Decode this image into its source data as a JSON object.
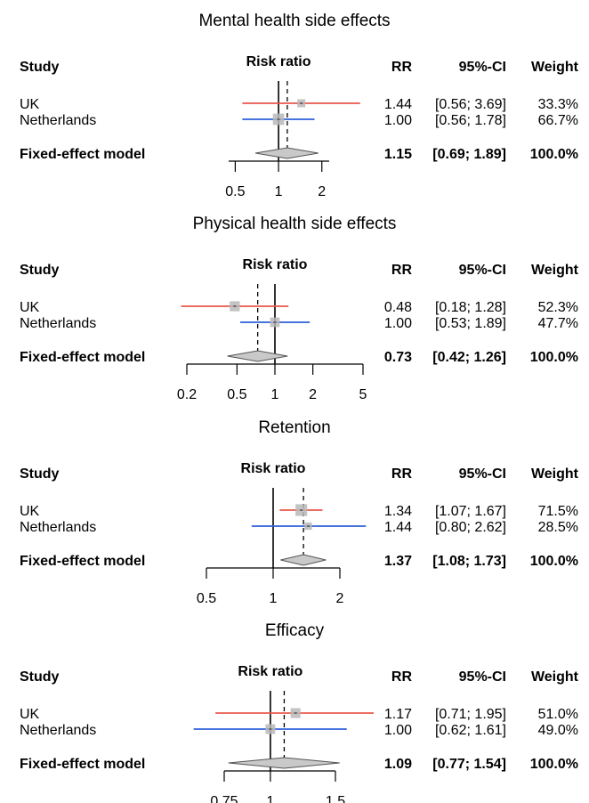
{
  "chart_data": [
    {
      "type": "forest",
      "title": "Mental health side effects",
      "headers": {
        "study": "Study",
        "effect": "Risk ratio",
        "rr": "RR",
        "ci": "95%-CI",
        "weight": "Weight"
      },
      "scale": "log",
      "xlim": [
        0.45,
        2.25
      ],
      "ticks": [
        {
          "v": 0.5,
          "label": "0.5"
        },
        {
          "v": 1,
          "label": "1"
        },
        {
          "v": 2,
          "label": "2"
        }
      ],
      "pooled_line": 1.15,
      "studies": [
        {
          "name": "UK",
          "rr": 1.44,
          "lo": 0.56,
          "hi": 3.69,
          "rr_text": "1.44",
          "ci_text": "[0.56; 3.69]",
          "weight_text": "33.3%",
          "weight": 33.3,
          "color": "#e8574a"
        },
        {
          "name": "Netherlands",
          "rr": 1.0,
          "lo": 0.56,
          "hi": 1.78,
          "rr_text": "1.00",
          "ci_text": "[0.56; 1.78]",
          "weight_text": "66.7%",
          "weight": 66.7,
          "color": "#2b5fd9"
        }
      ],
      "pooled": {
        "name": "Fixed-effect model",
        "rr": 1.15,
        "lo": 0.69,
        "hi": 1.89,
        "rr_text": "1.15",
        "ci_text": "[0.69; 1.89]",
        "weight_text": "100.0%"
      }
    },
    {
      "type": "forest",
      "title": "Physical health side effects",
      "headers": {
        "study": "Study",
        "effect": "Risk ratio",
        "rr": "RR",
        "ci": "95%-CI",
        "weight": "Weight"
      },
      "scale": "log",
      "xlim": [
        0.2,
        5
      ],
      "ticks": [
        {
          "v": 0.2,
          "label": "0.2"
        },
        {
          "v": 0.5,
          "label": "0.5"
        },
        {
          "v": 1,
          "label": "1"
        },
        {
          "v": 2,
          "label": "2"
        },
        {
          "v": 5,
          "label": "5"
        }
      ],
      "pooled_line": 0.73,
      "studies": [
        {
          "name": "UK",
          "rr": 0.48,
          "lo": 0.18,
          "hi": 1.28,
          "rr_text": "0.48",
          "ci_text": "[0.18; 1.28]",
          "weight_text": "52.3%",
          "weight": 52.3,
          "color": "#e8574a"
        },
        {
          "name": "Netherlands",
          "rr": 1.0,
          "lo": 0.53,
          "hi": 1.89,
          "rr_text": "1.00",
          "ci_text": "[0.53; 1.89]",
          "weight_text": "47.7%",
          "weight": 47.7,
          "color": "#2b5fd9"
        }
      ],
      "pooled": {
        "name": "Fixed-effect model",
        "rr": 0.73,
        "lo": 0.42,
        "hi": 1.26,
        "rr_text": "0.73",
        "ci_text": "[0.42; 1.26]",
        "weight_text": "100.0%"
      }
    },
    {
      "type": "forest",
      "title": "Retention",
      "headers": {
        "study": "Study",
        "effect": "Risk ratio",
        "rr": "RR",
        "ci": "95%-CI",
        "weight": "Weight"
      },
      "scale": "log",
      "xlim": [
        0.5,
        2
      ],
      "ticks": [
        {
          "v": 0.5,
          "label": "0.5"
        },
        {
          "v": 1,
          "label": "1"
        },
        {
          "v": 2,
          "label": "2"
        }
      ],
      "pooled_line": 1.37,
      "studies": [
        {
          "name": "UK",
          "rr": 1.34,
          "lo": 1.07,
          "hi": 1.67,
          "rr_text": "1.34",
          "ci_text": "[1.07; 1.67]",
          "weight_text": "71.5%",
          "weight": 71.5,
          "color": "#e8574a"
        },
        {
          "name": "Netherlands",
          "rr": 1.44,
          "lo": 0.8,
          "hi": 2.62,
          "rr_text": "1.44",
          "ci_text": "[0.80; 2.62]",
          "weight_text": "28.5%",
          "weight": 28.5,
          "color": "#2b5fd9"
        }
      ],
      "pooled": {
        "name": "Fixed-effect model",
        "rr": 1.37,
        "lo": 1.08,
        "hi": 1.73,
        "rr_text": "1.37",
        "ci_text": "[1.08; 1.73]",
        "weight_text": "100.0%"
      }
    },
    {
      "type": "forest",
      "title": "Efficacy",
      "headers": {
        "study": "Study",
        "effect": "Risk ratio",
        "rr": "RR",
        "ci": "95%-CI",
        "weight": "Weight"
      },
      "scale": "log",
      "xlim": [
        0.75,
        1.5
      ],
      "ticks": [
        {
          "v": 0.75,
          "label": "0.75"
        },
        {
          "v": 1,
          "label": "1"
        },
        {
          "v": 1.5,
          "label": "1.5"
        }
      ],
      "pooled_line": 1.09,
      "studies": [
        {
          "name": "UK",
          "rr": 1.17,
          "lo": 0.71,
          "hi": 1.95,
          "rr_text": "1.17",
          "ci_text": "[0.71; 1.95]",
          "weight_text": "51.0%",
          "weight": 51.0,
          "color": "#e8574a"
        },
        {
          "name": "Netherlands",
          "rr": 1.0,
          "lo": 0.62,
          "hi": 1.61,
          "rr_text": "1.00",
          "ci_text": "[0.62; 1.61]",
          "weight_text": "49.0%",
          "weight": 49.0,
          "color": "#2b5fd9"
        }
      ],
      "pooled": {
        "name": "Fixed-effect model",
        "rr": 1.09,
        "lo": 0.77,
        "hi": 1.54,
        "rr_text": "1.09",
        "ci_text": "[0.77; 1.54]",
        "weight_text": "100.0%"
      }
    }
  ]
}
